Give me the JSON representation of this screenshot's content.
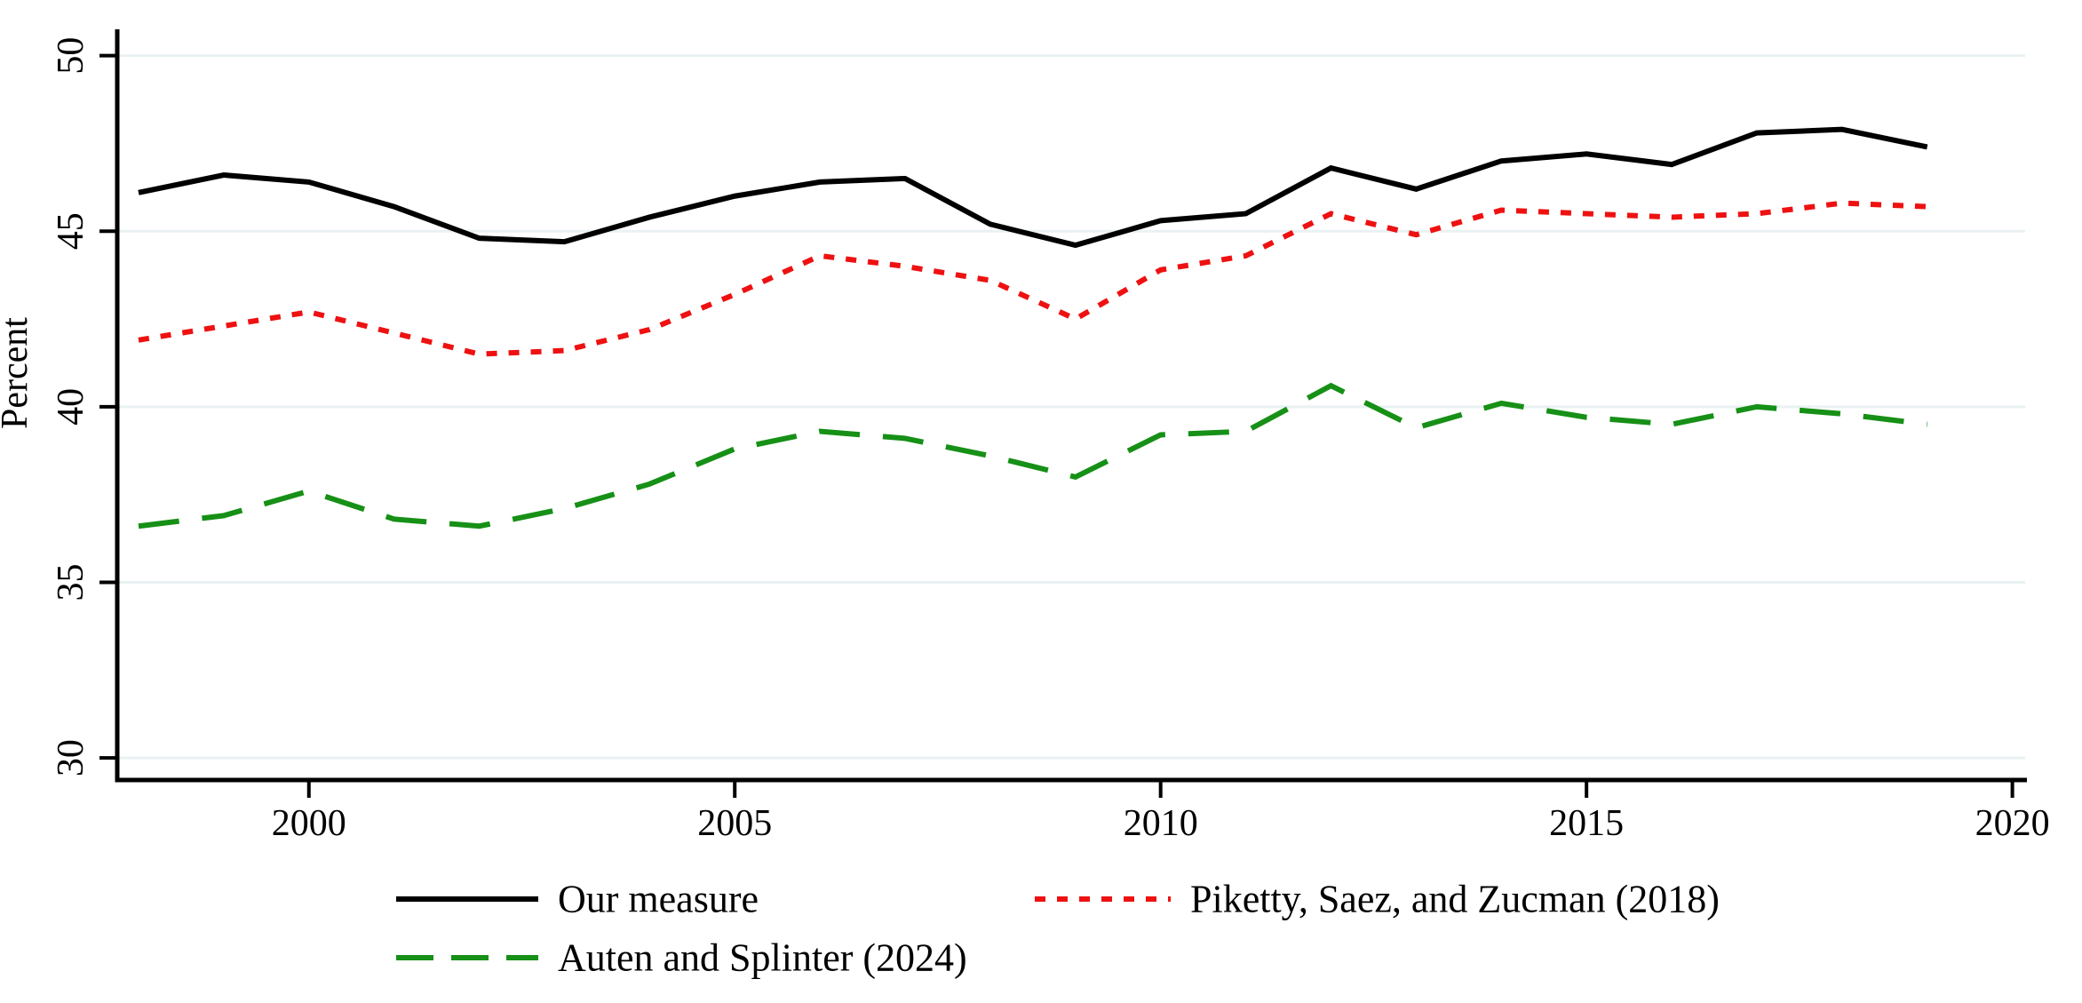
{
  "figure": {
    "title": "",
    "ylabel": "Percent",
    "background": "#ffffff",
    "axis_color": "#000000",
    "grid_color": "#e9f1f2",
    "text_color": "#000000"
  },
  "chart_data": {
    "type": "line",
    "x": [
      1998,
      1999,
      2000,
      2001,
      2002,
      2003,
      2004,
      2005,
      2006,
      2007,
      2008,
      2009,
      2010,
      2011,
      2012,
      2013,
      2014,
      2015,
      2016,
      2017,
      2018,
      2019
    ],
    "series": [
      {
        "name": "Our measure",
        "color": "#000000",
        "style": "solid",
        "values": [
          46.1,
          46.6,
          46.4,
          45.7,
          44.8,
          44.7,
          45.4,
          46.0,
          46.4,
          46.5,
          45.2,
          44.6,
          45.3,
          45.5,
          46.8,
          46.2,
          47.0,
          47.2,
          46.9,
          47.8,
          47.9,
          47.4
        ]
      },
      {
        "name": "Piketty, Saez, and Zucman (2018)",
        "color": "#ee1111",
        "style": "dotted",
        "values": [
          41.9,
          42.3,
          42.7,
          42.1,
          41.5,
          41.6,
          42.2,
          43.2,
          44.3,
          44.0,
          43.6,
          42.5,
          43.9,
          44.3,
          45.5,
          44.9,
          45.6,
          45.5,
          45.4,
          45.5,
          45.8,
          45.7
        ]
      },
      {
        "name": "Auten and Splinter (2024)",
        "color": "#169016",
        "style": "dashed",
        "values": [
          36.6,
          36.9,
          37.6,
          36.8,
          36.6,
          37.1,
          37.8,
          38.8,
          39.3,
          39.1,
          38.6,
          38.0,
          39.2,
          39.3,
          40.6,
          39.4,
          40.1,
          39.7,
          39.5,
          40.0,
          39.8,
          39.5
        ]
      }
    ],
    "title": "",
    "xlabel": "",
    "ylabel": "Percent",
    "xlim": [
      1997.75,
      2020.15
    ],
    "ylim": [
      29.37,
      50.75
    ],
    "xticks": [
      2000,
      2005,
      2010,
      2015,
      2020
    ],
    "yticks": [
      30,
      35,
      40,
      45,
      50
    ],
    "grid": true,
    "legend_position": "bottom"
  }
}
